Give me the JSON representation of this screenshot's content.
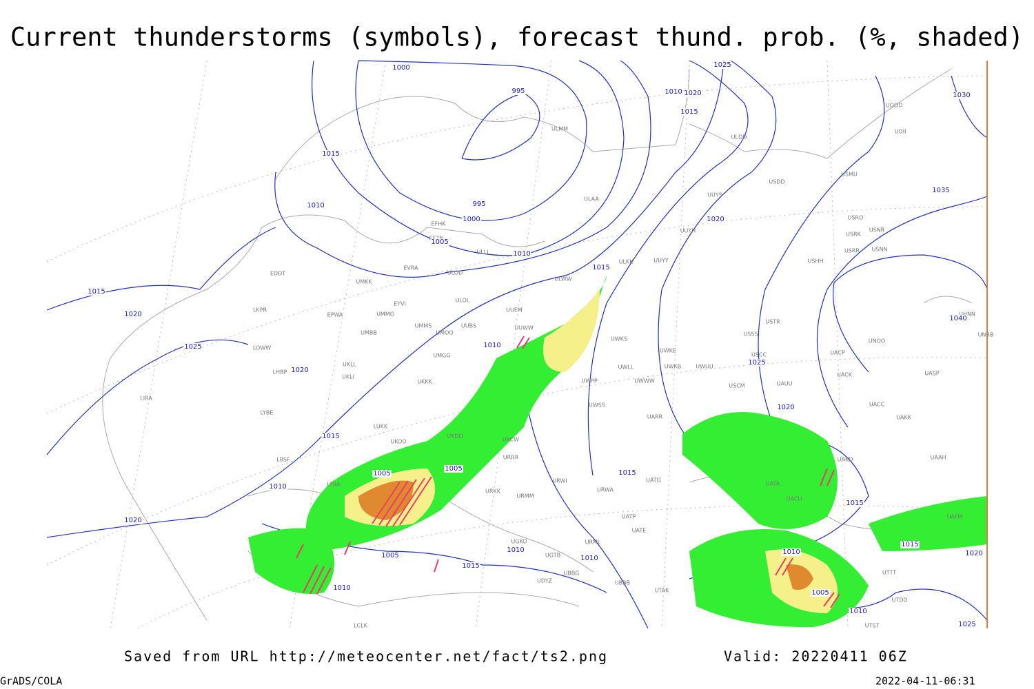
{
  "title": "Current thunderstorms (symbols), forecast thund. prob. (%, shaded)",
  "isobar_labels": [
    "1000",
    "995",
    "1015",
    "1010",
    "995",
    "1000",
    "1005",
    "1010",
    "1025",
    "1010",
    "1020",
    "1015",
    "1030",
    "1035",
    "1020",
    "1015",
    "1015",
    "1020",
    "1025",
    "1020",
    "1010",
    "1040",
    "1025",
    "1020",
    "1015",
    "1005",
    "1005",
    "1010",
    "1015",
    "1015",
    "1020",
    "1005",
    "1015",
    "1010",
    "1010",
    "1010",
    "1015",
    "1020",
    "1010",
    "1005",
    "1010",
    "1025"
  ],
  "stations": [
    "ULMM",
    "ULDD",
    "UOII",
    "UODD",
    "USMU",
    "USDD",
    "ULAA",
    "UUYS",
    "USRO",
    "USRK",
    "USNR",
    "USRR",
    "USNN",
    "UUYH",
    "EFHK",
    "EETN",
    "ULLI",
    "USHH",
    "ULKK",
    "UUYY",
    "EVRA",
    "ULOD",
    "EDDT",
    "UMKK",
    "ULWW",
    "EYVI",
    "ULOL",
    "UUEM",
    "LKPR",
    "EPWA",
    "UMMG",
    "UHNN",
    "UMMS",
    "UMOO",
    "UUBS",
    "UUWW",
    "USTR",
    "UMBB",
    "UWKS",
    "USSS",
    "UNOO",
    "UNBB",
    "LOWW",
    "UMGG",
    "UWLL",
    "UWKE",
    "USCC",
    "UACP",
    "UKLL",
    "UWKB",
    "UWUU",
    "LHBP",
    "UKLI",
    "UACK",
    "UASP",
    "UWPP",
    "UWWW",
    "UKKK",
    "USCM",
    "UAUU",
    "LIRA",
    "UWSS",
    "UACC",
    "LYBE",
    "LUKK",
    "UARR",
    "UAKK",
    "UKOO",
    "UKDD",
    "UKCW",
    "URRR",
    "UAKD",
    "UAAH",
    "LBSF",
    "UATG",
    "UATA",
    "URMM",
    "URWI",
    "URWA",
    "UACU",
    "UATP",
    "UATE",
    "UGKO",
    "UGTB",
    "URML",
    "UBBG",
    "UBBB",
    "UTAK",
    "LTBA",
    "UAFM",
    "UTTT",
    "UTDD",
    "UTST",
    "LCLK",
    "UDYZ",
    "URKK"
  ],
  "footer": {
    "source": "Saved from URL http://meteocenter.net/fact/ts2.png",
    "valid": "Valid: 20220411 06Z",
    "software": "GrADS/COLA",
    "timestamp": "2022-04-11-06:31"
  }
}
